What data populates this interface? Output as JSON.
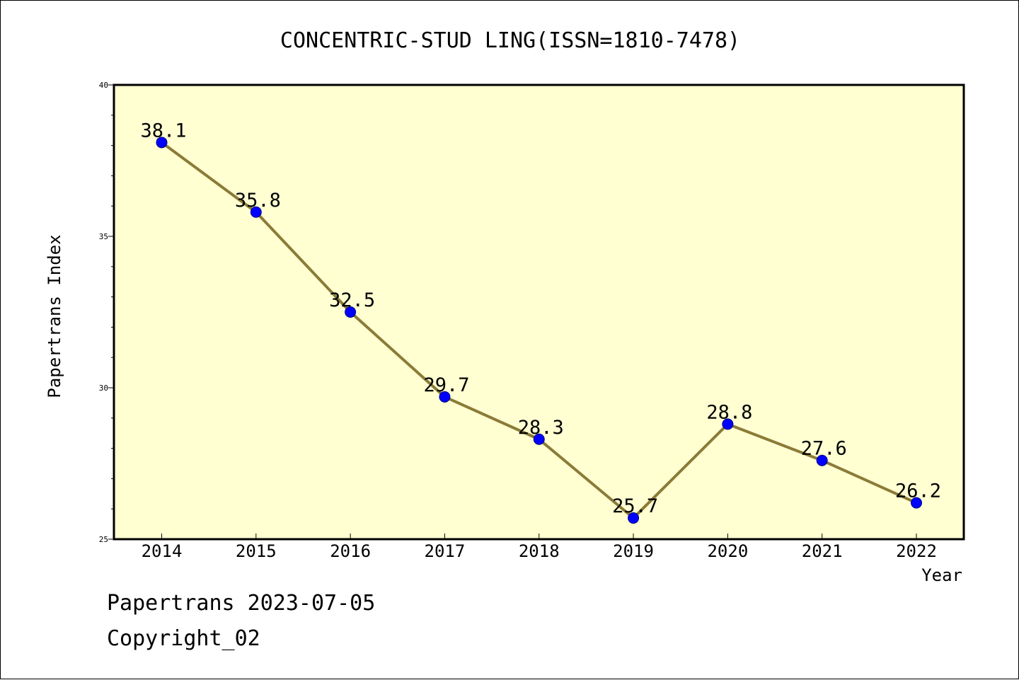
{
  "chart_data": {
    "type": "line",
    "title": "CONCENTRIC-STUD LING(ISSN=1810-7478)",
    "xlabel": "Year",
    "ylabel": "Papertrans Index",
    "categories": [
      "2014",
      "2015",
      "2016",
      "2017",
      "2018",
      "2019",
      "2020",
      "2021",
      "2022"
    ],
    "series": [
      {
        "values": [
          38.1,
          35.8,
          32.5,
          29.7,
          28.3,
          25.7,
          28.8,
          27.6,
          26.2
        ],
        "data_labels": [
          "38.1",
          "35.8",
          "32.5",
          "29.7",
          "28.3",
          "25.7",
          "28.8",
          "27.6",
          "26.2"
        ],
        "line_color": "#8B7B37",
        "marker_color": "#0000FF"
      }
    ],
    "ylim": [
      25,
      40
    ],
    "yticks": [
      "25",
      "30",
      "35",
      "40"
    ],
    "grid": false,
    "plot_background": "#FFFFD2"
  },
  "footer": {
    "line1": "Papertrans 2023-07-05",
    "line2": "Copyright_02"
  }
}
